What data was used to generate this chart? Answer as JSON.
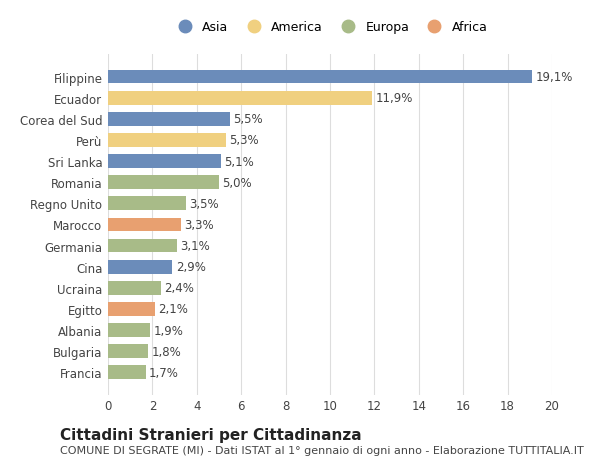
{
  "categories": [
    "Filippine",
    "Ecuador",
    "Corea del Sud",
    "Perù",
    "Sri Lanka",
    "Romania",
    "Regno Unito",
    "Marocco",
    "Germania",
    "Cina",
    "Ucraina",
    "Egitto",
    "Albania",
    "Bulgaria",
    "Francia"
  ],
  "values": [
    19.1,
    11.9,
    5.5,
    5.3,
    5.1,
    5.0,
    3.5,
    3.3,
    3.1,
    2.9,
    2.4,
    2.1,
    1.9,
    1.8,
    1.7
  ],
  "labels": [
    "19,1%",
    "11,9%",
    "5,5%",
    "5,3%",
    "5,1%",
    "5,0%",
    "3,5%",
    "3,3%",
    "3,1%",
    "2,9%",
    "2,4%",
    "2,1%",
    "1,9%",
    "1,8%",
    "1,7%"
  ],
  "continents": [
    "Asia",
    "America",
    "Asia",
    "America",
    "Asia",
    "Europa",
    "Europa",
    "Africa",
    "Europa",
    "Asia",
    "Europa",
    "Africa",
    "Europa",
    "Europa",
    "Europa"
  ],
  "colors": {
    "Asia": "#6b8cba",
    "America": "#f0d080",
    "Europa": "#a8bb88",
    "Africa": "#e8a070"
  },
  "legend_order": [
    "Asia",
    "America",
    "Europa",
    "Africa"
  ],
  "xlim": [
    0,
    20
  ],
  "xticks": [
    0,
    2,
    4,
    6,
    8,
    10,
    12,
    14,
    16,
    18,
    20
  ],
  "title": "Cittadini Stranieri per Cittadinanza",
  "subtitle": "COMUNE DI SEGRATE (MI) - Dati ISTAT al 1° gennaio di ogni anno - Elaborazione TUTTITALIA.IT",
  "background_color": "#ffffff",
  "grid_color": "#dddddd",
  "bar_height": 0.65,
  "title_fontsize": 11,
  "subtitle_fontsize": 8,
  "label_fontsize": 8.5,
  "tick_fontsize": 8.5
}
